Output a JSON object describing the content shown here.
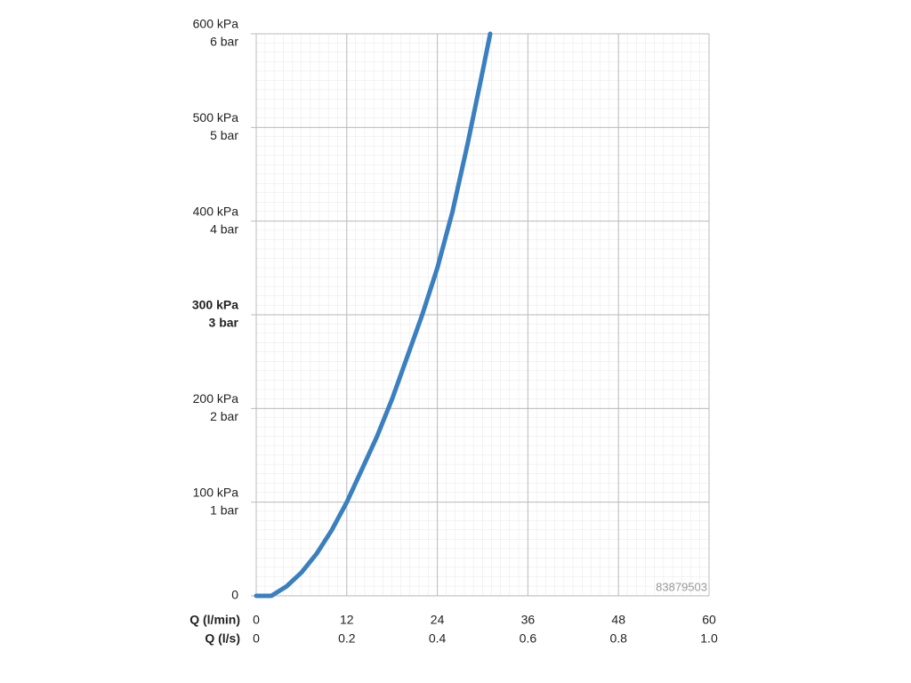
{
  "chart_data": {
    "type": "line",
    "x": [
      0,
      2,
      4,
      6,
      8,
      10,
      12,
      14,
      16,
      18,
      20,
      22,
      24,
      26,
      28,
      30,
      31
    ],
    "series": [
      {
        "color": "#3a7fbf",
        "values": [
          0,
          0,
          10,
          25,
          45,
          70,
          100,
          135,
          170,
          210,
          255,
          300,
          350,
          410,
          482,
          560,
          600
        ]
      }
    ],
    "xlim": [
      0,
      60
    ],
    "xticks": [
      0,
      12,
      24,
      36,
      48,
      60
    ],
    "x2lim": [
      0,
      1
    ],
    "x2ticks": [
      0,
      0.2,
      0.4,
      0.6,
      0.8,
      {
        "value": 1,
        "label": "1.0"
      }
    ],
    "xlabel": "Q (l/min)",
    "x2label": "Q (l/s)",
    "ylim": [
      0,
      600
    ],
    "yticks": [
      0,
      {
        "value": 100,
        "label": "100 kPa"
      },
      {
        "value": 200,
        "label": "200 kPa"
      },
      {
        "value": 300,
        "label": "300 kPa"
      },
      {
        "value": 400,
        "label": "400 kPa"
      },
      {
        "value": 500,
        "label": "500 kPa"
      },
      {
        "value": 600,
        "label": "600 kPa"
      }
    ],
    "y2lim": [
      0,
      6
    ],
    "y2ticks": [
      {
        "value": 1,
        "label": "1 bar"
      },
      {
        "value": 2,
        "label": "2 bar"
      },
      {
        "value": 3,
        "label": "3 bar"
      },
      {
        "value": 4,
        "label": "4 bar"
      },
      {
        "value": 5,
        "label": "5 bar"
      },
      {
        "value": 6,
        "label": "6 bar"
      }
    ],
    "emphasized_ytick": 300,
    "grid": true,
    "watermark": "83879503"
  }
}
